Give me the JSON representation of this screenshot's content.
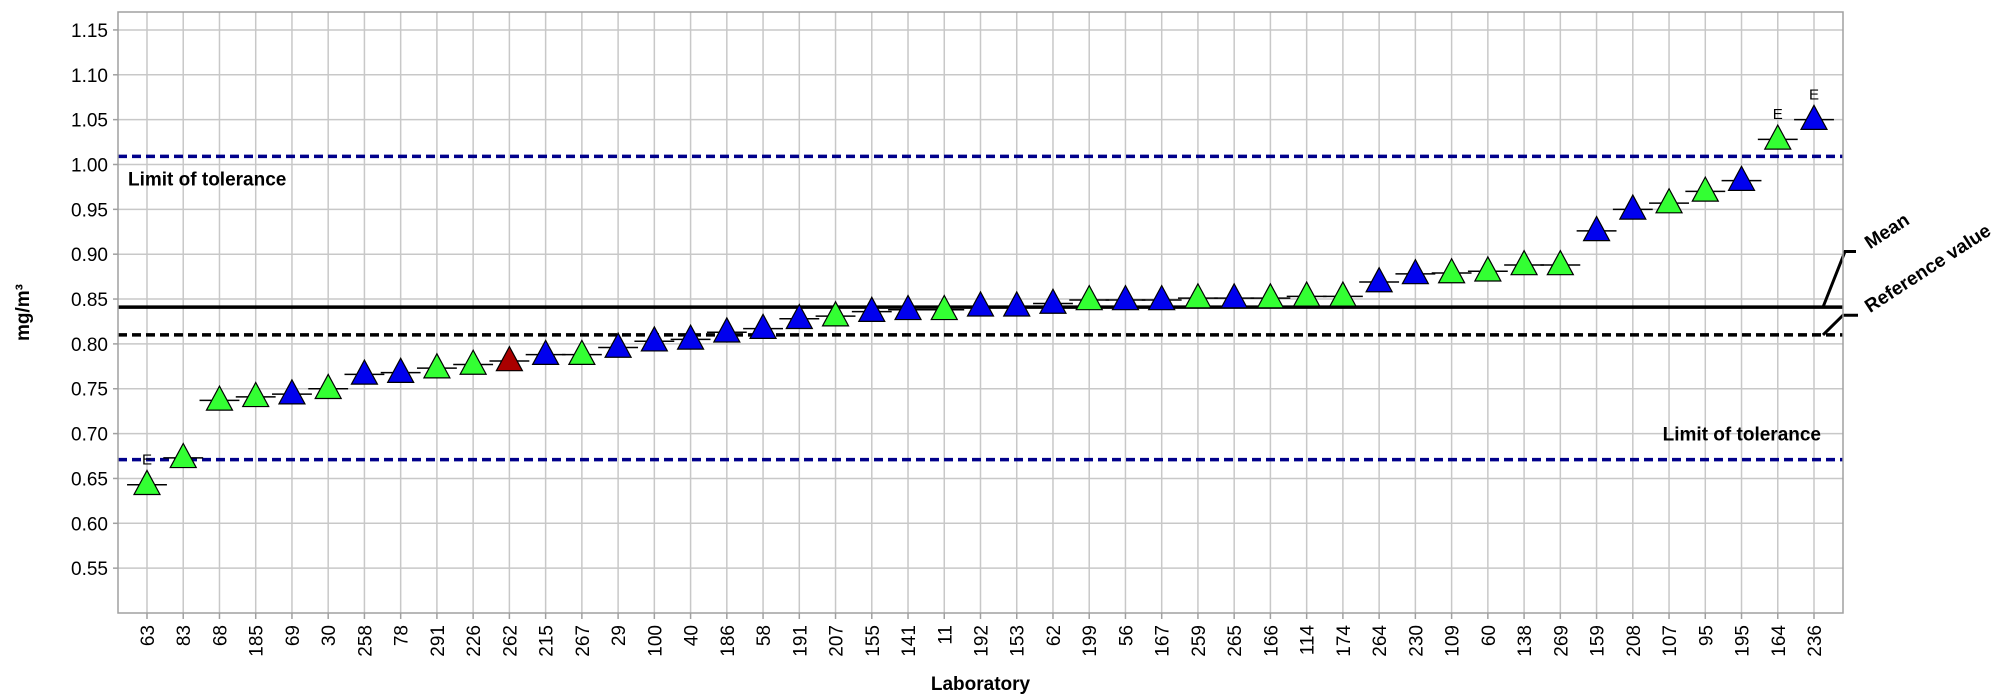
{
  "chart_data": {
    "type": "scatter",
    "xlabel": "Laboratory",
    "ylabel": "mg/m³",
    "ylim": [
      0.5,
      1.17
    ],
    "yticks": [
      "0.55",
      "0.60",
      "0.65",
      "0.70",
      "0.75",
      "0.80",
      "0.85",
      "0.90",
      "0.95",
      "1.00",
      "1.05",
      "1.10",
      "1.15"
    ],
    "grid": true,
    "categories": [
      "63",
      "83",
      "68",
      "185",
      "69",
      "30",
      "258",
      "78",
      "291",
      "226",
      "262",
      "215",
      "267",
      "29",
      "100",
      "40",
      "186",
      "58",
      "191",
      "207",
      "155",
      "141",
      "11",
      "192",
      "153",
      "62",
      "199",
      "56",
      "167",
      "259",
      "265",
      "166",
      "114",
      "174",
      "264",
      "230",
      "109",
      "60",
      "138",
      "269",
      "159",
      "208",
      "107",
      "95",
      "195",
      "164",
      "236"
    ],
    "values": [
      0.643,
      0.673,
      0.737,
      0.741,
      0.744,
      0.75,
      0.766,
      0.768,
      0.773,
      0.777,
      0.781,
      0.788,
      0.788,
      0.796,
      0.803,
      0.805,
      0.813,
      0.817,
      0.828,
      0.831,
      0.836,
      0.838,
      0.838,
      0.842,
      0.842,
      0.845,
      0.849,
      0.849,
      0.849,
      0.851,
      0.851,
      0.851,
      0.853,
      0.853,
      0.869,
      0.878,
      0.879,
      0.881,
      0.888,
      0.888,
      0.926,
      0.95,
      0.957,
      0.97,
      0.982,
      1.028,
      1.05
    ],
    "marker_colors": [
      "green",
      "green",
      "green",
      "green",
      "blue",
      "green",
      "blue",
      "blue",
      "green",
      "green",
      "red",
      "blue",
      "green",
      "blue",
      "blue",
      "blue",
      "blue",
      "blue",
      "blue",
      "green",
      "blue",
      "blue",
      "green",
      "blue",
      "blue",
      "blue",
      "green",
      "blue",
      "blue",
      "green",
      "blue",
      "green",
      "green",
      "green",
      "blue",
      "blue",
      "green",
      "green",
      "green",
      "green",
      "blue",
      "blue",
      "green",
      "green",
      "blue",
      "green",
      "blue"
    ],
    "flags": {
      "0": "E",
      "45": "E",
      "46": "E"
    },
    "reference_lines": [
      {
        "label": "Limit of tolerance",
        "value": 1.009,
        "style": "dashed",
        "color": "#00008b",
        "label_pos": "top-left"
      },
      {
        "label": "Limit of tolerance",
        "value": 0.671,
        "style": "dashed",
        "color": "#00008b",
        "label_pos": "top-right"
      },
      {
        "label": "Mean",
        "value": 0.841,
        "style": "solid",
        "color": "#000000"
      },
      {
        "label": "Reference value",
        "value": 0.81,
        "style": "dashed",
        "color": "#000000"
      }
    ],
    "colors": {
      "green": "#33ff33",
      "blue": "#0000ee",
      "red": "#aa0000",
      "grid": "#c8c8c8",
      "limit": "#00008b"
    }
  }
}
